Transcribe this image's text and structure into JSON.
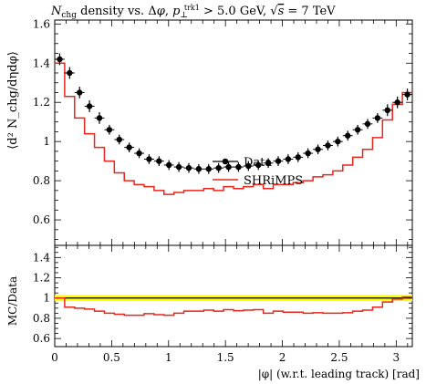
{
  "chart_data": {
    "type": "line",
    "title": "N_chg density vs. Δφ, p⊥trk1 > 5.0 GeV, √s = 7 TeV",
    "title_parts": {
      "a": "N",
      "a_sub": "chg",
      "b": " density vs. Δ",
      "phi": "φ",
      "c": ", ",
      "p": "p",
      "p_sub": "⊥",
      "p_sup": "trk1",
      "d": " > 5.0 GeV, ",
      "sqrt": "√",
      "s": "s",
      "e": " = 7 TeV"
    },
    "xlabel": "|φ| (w.r.t. leading track) [rad]",
    "ylabel_main": "⟨d² N_chg/dηdφ⟩",
    "ylabel_ratio": "MC/Data",
    "xlim": [
      0,
      3.14159
    ],
    "ylim_main": [
      0.47,
      1.62
    ],
    "ylim_ratio": [
      0.52,
      1.52
    ],
    "x_ticks": [
      0,
      0.5,
      1,
      1.5,
      2,
      2.5,
      3
    ],
    "x_tick_labels": [
      "0",
      "0.5",
      "1",
      "1.5",
      "2",
      "2.5",
      "3"
    ],
    "y_ticks_main": [
      0.6,
      0.8,
      1,
      1.2,
      1.4,
      1.6
    ],
    "y_tick_labels_main": [
      "0.6",
      "0.8",
      "1",
      "1.2",
      "1.4",
      "1.6"
    ],
    "y_ticks_ratio": [
      0.6,
      0.8,
      1,
      1.2,
      1.4
    ],
    "y_tick_labels_ratio": [
      "0.6",
      "0.8",
      "1",
      "1.2",
      "1.4"
    ],
    "legend_position": "right",
    "bins": 36,
    "series": [
      {
        "name": "Data",
        "style": "points",
        "color": "#000000",
        "values": [
          1.42,
          1.35,
          1.25,
          1.18,
          1.12,
          1.06,
          1.01,
          0.97,
          0.94,
          0.91,
          0.9,
          0.88,
          0.87,
          0.865,
          0.86,
          0.86,
          0.865,
          0.87,
          0.87,
          0.875,
          0.88,
          0.89,
          0.9,
          0.91,
          0.92,
          0.94,
          0.96,
          0.98,
          1.0,
          1.03,
          1.06,
          1.09,
          1.12,
          1.16,
          1.2,
          1.24
        ],
        "errors": [
          0.03,
          0.03,
          0.03,
          0.03,
          0.03,
          0.025,
          0.025,
          0.025,
          0.025,
          0.025,
          0.025,
          0.025,
          0.025,
          0.025,
          0.025,
          0.025,
          0.025,
          0.025,
          0.025,
          0.025,
          0.025,
          0.025,
          0.025,
          0.025,
          0.025,
          0.025,
          0.025,
          0.025,
          0.025,
          0.025,
          0.025,
          0.025,
          0.025,
          0.03,
          0.03,
          0.03
        ]
      },
      {
        "name": "SHRiMPS",
        "style": "step",
        "color": "#e8261c",
        "values": [
          1.4,
          1.23,
          1.12,
          1.04,
          0.97,
          0.9,
          0.84,
          0.8,
          0.78,
          0.77,
          0.75,
          0.73,
          0.74,
          0.75,
          0.75,
          0.76,
          0.75,
          0.77,
          0.76,
          0.77,
          0.78,
          0.76,
          0.78,
          0.78,
          0.79,
          0.8,
          0.82,
          0.83,
          0.85,
          0.88,
          0.92,
          0.96,
          1.02,
          1.11,
          1.19,
          1.25
        ]
      }
    ],
    "ratio": {
      "band_color": "#ffff00",
      "reference": 1.0,
      "band_halfwidth": 0.03,
      "values": [
        1.0,
        0.91,
        0.9,
        0.89,
        0.87,
        0.85,
        0.84,
        0.83,
        0.83,
        0.845,
        0.835,
        0.83,
        0.85,
        0.87,
        0.87,
        0.88,
        0.87,
        0.885,
        0.875,
        0.88,
        0.885,
        0.85,
        0.87,
        0.86,
        0.86,
        0.85,
        0.855,
        0.85,
        0.85,
        0.855,
        0.87,
        0.88,
        0.91,
        0.96,
        0.99,
        1.01
      ]
    }
  }
}
